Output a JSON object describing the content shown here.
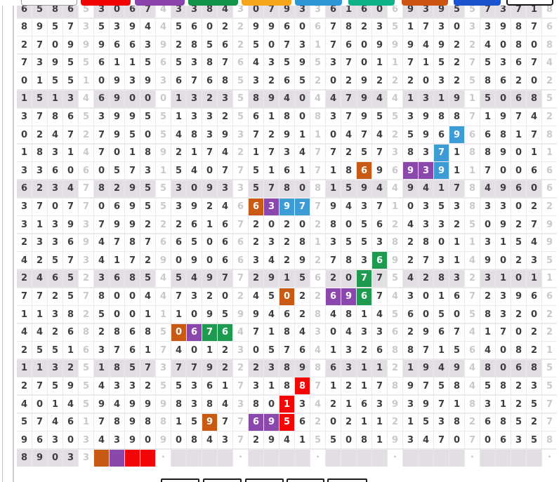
{
  "topbar": {
    "color_buttons": [
      {
        "name": "filter-select-button",
        "bg": "#fcfcfc",
        "kind": "select",
        "label": ""
      },
      {
        "name": "red-filter-button",
        "bg": "#f00303",
        "kind": "flat",
        "label": ""
      },
      {
        "name": "purple-filter-button",
        "bg": "#8c44ad",
        "kind": "flat",
        "label": ""
      },
      {
        "name": "green-filter-button",
        "bg": "#13944b",
        "kind": "flat",
        "label": ""
      },
      {
        "name": "amber-filter-button",
        "bg": "#f7a41d",
        "kind": "flat",
        "label": ""
      },
      {
        "name": "light-blue-filter-button",
        "bg": "#2e98d6",
        "kind": "flat",
        "label": ""
      },
      {
        "name": "teal-filter-button",
        "bg": "#10b289",
        "kind": "flat",
        "label": ""
      },
      {
        "name": "dark-orange-filter-button",
        "bg": "#cc5511",
        "kind": "flat",
        "label": ""
      },
      {
        "name": "blue-filter-button",
        "bg": "#1a54cf",
        "kind": "flat",
        "label": ""
      },
      {
        "name": "white-outline-button",
        "bg": "#ffffff",
        "kind": "outline",
        "label": ""
      }
    ]
  },
  "highlight_colors": {
    "orange": "#c85a14",
    "purple": "#8b48ac",
    "blue": "#3d9cd6",
    "green": "#1f9b50",
    "red": "#f40606"
  },
  "grid": {
    "columns": 35,
    "group_size": 4,
    "separator_every": 5,
    "cell_bg": "#ffffff",
    "shaded_row_bg": "#e2dee4",
    "digit_color": "#3d3c3e",
    "separator_digit_color": "#cbc7cd",
    "rows": [
      {
        "shaded": true,
        "d": "65865306743384307933616069395573718",
        "hl": {}
      },
      {
        "shaded": false,
        "d": "89573539445602299606782351730339876",
        "hl": {}
      },
      {
        "shaded": false,
        "d": "27099966392856250731760999492240808",
        "hl": {}
      },
      {
        "shaded": false,
        "d": "73955611565387643595370117152753674",
        "hl": {}
      },
      {
        "shaded": false,
        "d": "01551093936768532652029222032586202",
        "hl": {}
      },
      {
        "shaded": true,
        "d": "15134690001323589404479441319150685",
        "hl": {}
      },
      {
        "shaded": false,
        "d": "37865399551332561808379553988719742",
        "hl": {}
      },
      {
        "shaded": false,
        "d": "02472795054839372911047425969668178",
        "hl": {
          "28": "blue"
        }
      },
      {
        "shaded": false,
        "d": "18314701892174217347725738371889011",
        "hl": {
          "27": "blue"
        }
      },
      {
        "shaded": false,
        "d": "33606057315407751617186969391170066",
        "hl": {
          "22": "orange",
          "25": "purple",
          "26": "purple",
          "27": "blue"
        }
      },
      {
        "shaded": true,
        "d": "62347829553093357808159449417849606",
        "hl": {}
      },
      {
        "shaded": false,
        "d": "37077069553924663977943710353833022",
        "hl": {
          "15": "orange",
          "16": "purple",
          "17": "blue",
          "18": "blue"
        }
      },
      {
        "shaded": false,
        "d": "31393799222616720202805624332509279",
        "hl": {}
      },
      {
        "shaded": false,
        "d": "23369478766506623281355382801131549",
        "hl": {}
      },
      {
        "shaded": false,
        "d": "42573417290906634292783692731490235",
        "hl": {
          "23": "green"
        }
      },
      {
        "shaded": true,
        "d": "24652368545497729156207754283231011",
        "hl": {
          "22": "green"
        }
      },
      {
        "shaded": false,
        "d": "77257800447320245022696743016723966",
        "hl": {
          "17": "orange",
          "20": "purple",
          "21": "purple",
          "22": "green"
        }
      },
      {
        "shaded": false,
        "d": "11382500111095994628481456050583202",
        "hl": {}
      },
      {
        "shaded": false,
        "d": "44268286850676471843043362967417022",
        "hl": {
          "10": "orange",
          "11": "purple",
          "12": "green",
          "13": "green"
        }
      },
      {
        "shaded": false,
        "d": "25516376174012305764132688715640821",
        "hl": {}
      },
      {
        "shaded": true,
        "d": "11325185737792223898631121949480685",
        "hl": {}
      },
      {
        "shaded": false,
        "d": "27595433255361731887121789758458235",
        "hl": {
          "18": "red"
        }
      },
      {
        "shaded": false,
        "d": "40145949998384380134216393971831257",
        "hl": {
          "17": "red"
        }
      },
      {
        "shaded": false,
        "d": "57461789881597769562021121538268527",
        "hl": {
          "12": "orange",
          "15": "purple",
          "16": "purple",
          "17": "red"
        }
      },
      {
        "shaded": false,
        "d": "96303439090843729415508193470706358",
        "hl": {}
      },
      {
        "shaded": true,
        "d": "89033____.____.____.____.____.____.",
        "hl": {
          "5": "orange",
          "6": "purple",
          "7": "red",
          "8": "red"
        }
      }
    ]
  },
  "bottom_buttons": [
    {
      "name": "bottom-button-1",
      "label": ""
    },
    {
      "name": "bottom-button-2",
      "label": ""
    },
    {
      "name": "bottom-button-3",
      "label": ""
    },
    {
      "name": "bottom-button-4",
      "label": ""
    },
    {
      "name": "bottom-button-5",
      "label": ""
    }
  ]
}
